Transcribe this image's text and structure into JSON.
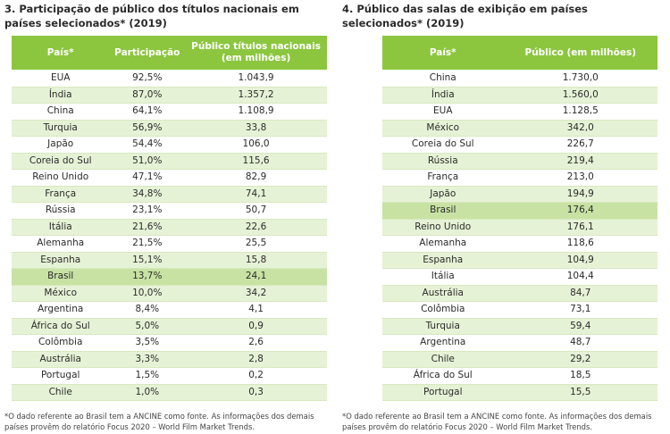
{
  "left": {
    "title": "3. Participação de público dos títulos nacionais em países selecionados* (2019)",
    "headers": [
      "País*",
      "Participação",
      "Público títulos nacionais (em milhões)"
    ],
    "rows": [
      {
        "pais": "EUA",
        "participacao": "92,5%",
        "publico": "1.043,9"
      },
      {
        "pais": "Índia",
        "participacao": "87,0%",
        "publico": "1.357,2"
      },
      {
        "pais": "China",
        "participacao": "64,1%",
        "publico": "1.108,9"
      },
      {
        "pais": "Turquia",
        "participacao": "56,9%",
        "publico": "33,8"
      },
      {
        "pais": "Japão",
        "participacao": "54,4%",
        "publico": "106,0"
      },
      {
        "pais": "Coreia do Sul",
        "participacao": "51,0%",
        "publico": "115,6"
      },
      {
        "pais": "Reino Unido",
        "participacao": "47,1%",
        "publico": "82,9"
      },
      {
        "pais": "França",
        "participacao": "34,8%",
        "publico": "74,1"
      },
      {
        "pais": "Rússia",
        "participacao": "23,1%",
        "publico": "50,7"
      },
      {
        "pais": "Itália",
        "participacao": "21,6%",
        "publico": "22,6"
      },
      {
        "pais": "Alemanha",
        "participacao": "21,5%",
        "publico": "25,5"
      },
      {
        "pais": "Espanha",
        "participacao": "15,1%",
        "publico": "15,8"
      },
      {
        "pais": "Brasil",
        "participacao": "13,7%",
        "publico": "24,1",
        "highlight": true
      },
      {
        "pais": "México",
        "participacao": "10,0%",
        "publico": "34,2"
      },
      {
        "pais": "Argentina",
        "participacao": "8,4%",
        "publico": "4,1"
      },
      {
        "pais": "África do Sul",
        "participacao": "5,0%",
        "publico": "0,9"
      },
      {
        "pais": "Colômbia",
        "participacao": "3,5%",
        "publico": "2,6"
      },
      {
        "pais": "Austrália",
        "participacao": "3,3%",
        "publico": "2,8"
      },
      {
        "pais": "Portugal",
        "participacao": "1,5%",
        "publico": "0,2"
      },
      {
        "pais": "Chile",
        "participacao": "1,0%",
        "publico": "0,3"
      }
    ],
    "footnote": "*O dado referente ao Brasil tem a ANCINE como fonte. As informações dos demais países provêm do relatório Focus 2020 – World Film Market Trends."
  },
  "right": {
    "title": "4. Público das salas de exibição em países selecionados* (2019)",
    "headers": [
      "País*",
      "Público (em milhões)"
    ],
    "rows": [
      {
        "pais": "China",
        "publico": "1.730,0"
      },
      {
        "pais": "Índia",
        "publico": "1.560,0"
      },
      {
        "pais": "EUA",
        "publico": "1.128,5"
      },
      {
        "pais": "México",
        "publico": "342,0"
      },
      {
        "pais": "Coreia do Sul",
        "publico": "226,7"
      },
      {
        "pais": "Rússia",
        "publico": "219,4"
      },
      {
        "pais": "França",
        "publico": "213,0"
      },
      {
        "pais": "Japão",
        "publico": "194,9"
      },
      {
        "pais": "Brasil",
        "publico": "176,4",
        "highlight": true
      },
      {
        "pais": "Reino Unido",
        "publico": "176,1"
      },
      {
        "pais": "Alemanha",
        "publico": "118,6"
      },
      {
        "pais": "Espanha",
        "publico": "104,9"
      },
      {
        "pais": "Itália",
        "publico": "104,4"
      },
      {
        "pais": "Austrália",
        "publico": "84,7"
      },
      {
        "pais": "Colômbia",
        "publico": "73,1"
      },
      {
        "pais": "Turquia",
        "publico": "59,4"
      },
      {
        "pais": "Argentina",
        "publico": "48,7"
      },
      {
        "pais": "Chile",
        "publico": "29,2"
      },
      {
        "pais": "África do Sul",
        "publico": "18,5"
      },
      {
        "pais": "Portugal",
        "publico": "15,5"
      }
    ],
    "footnote": "*O dado referente ao Brasil tem a ANCINE como fonte. As informações dos demais países provêm do relatório Focus 2020 – World Film Market Trends."
  }
}
